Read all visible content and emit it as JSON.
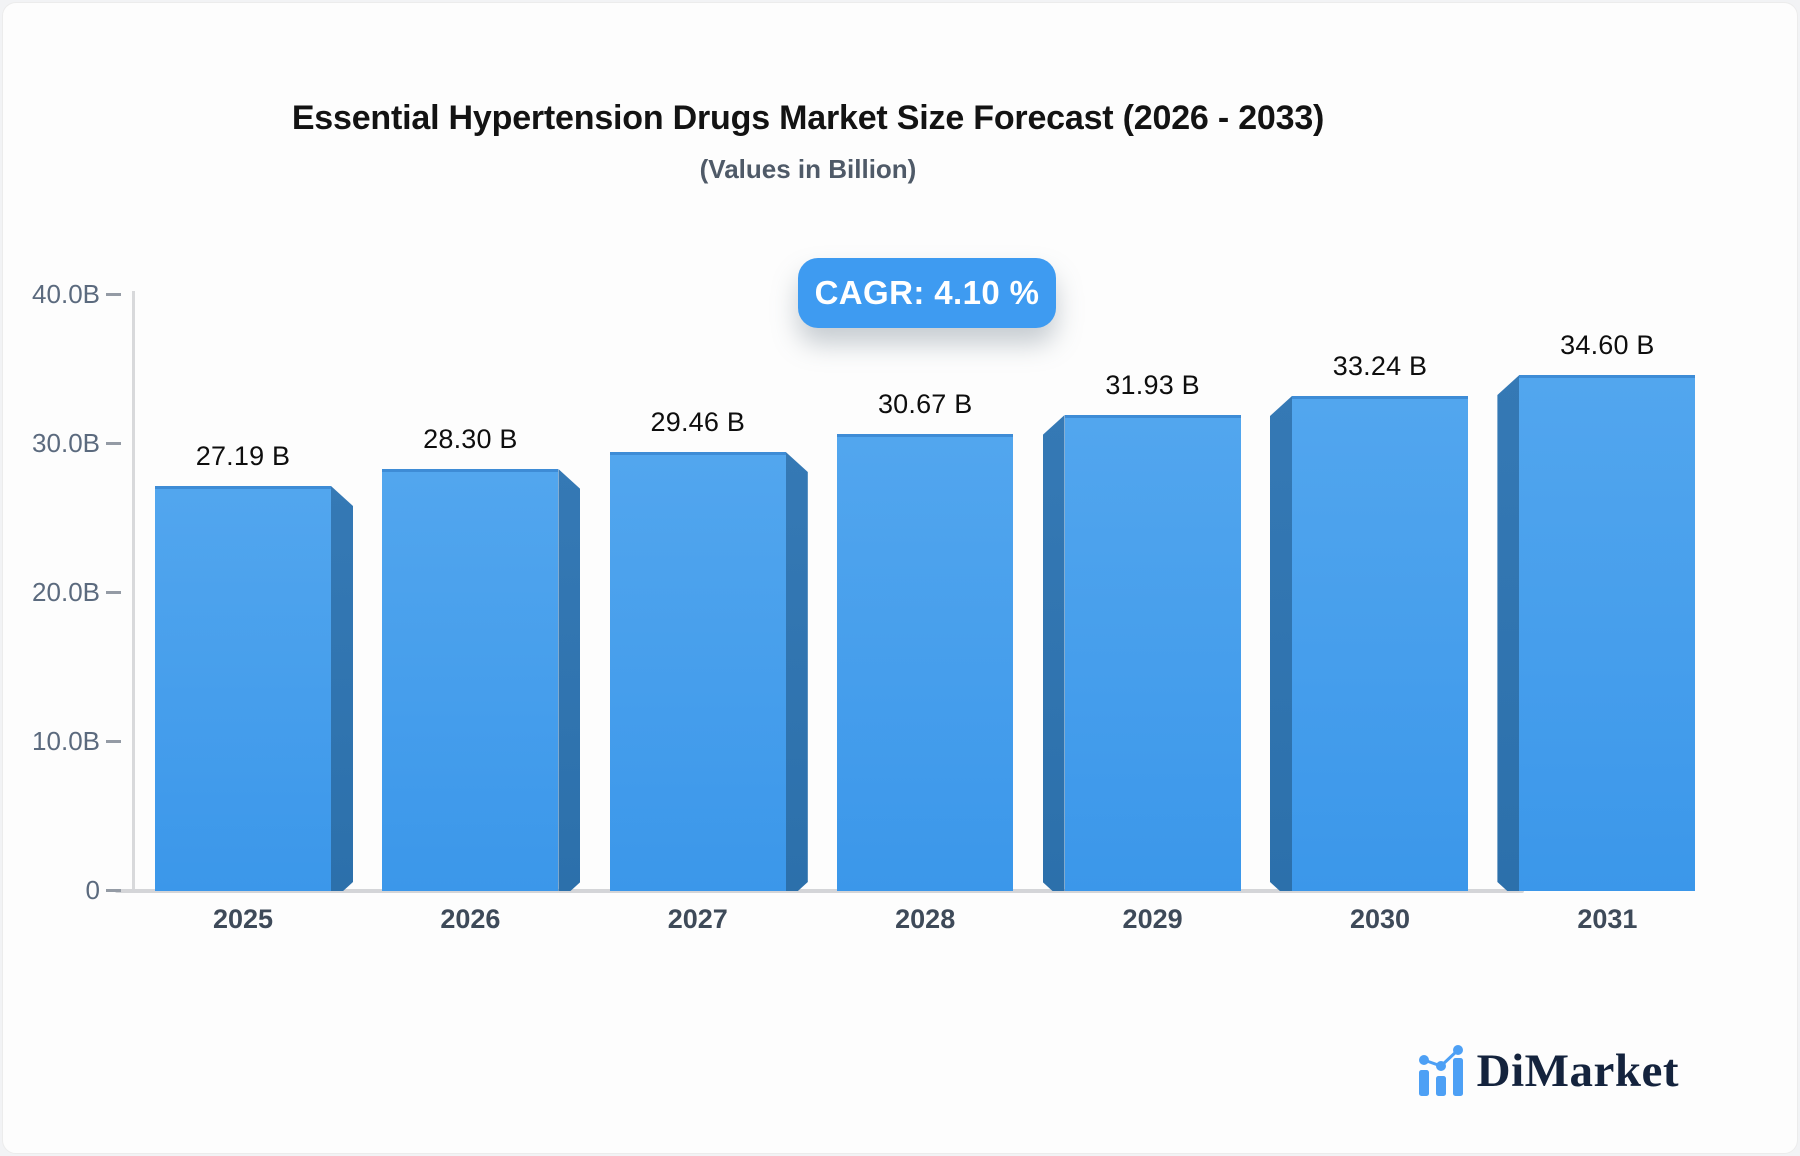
{
  "header": {
    "title": "Essential Hypertension Drugs Market Size Forecast (2026 - 2033)",
    "subtitle": "(Values in Billion)",
    "cagr_badge": "CAGR: 4.10 %"
  },
  "chart_data": {
    "type": "bar",
    "title": "Essential Hypertension Drugs Market Size Forecast (2026 - 2033)",
    "subtitle": "(Values in Billion)",
    "categories": [
      "2025",
      "2026",
      "2027",
      "2028",
      "2029",
      "2030",
      "2031"
    ],
    "values": [
      27.19,
      28.3,
      29.46,
      30.67,
      31.93,
      33.24,
      34.6
    ],
    "value_labels": [
      "27.19 B",
      "28.30 B",
      "29.46 B",
      "30.67 B",
      "31.93 B",
      "33.24 B",
      "34.60 B"
    ],
    "unit": "Billion",
    "cagr": "4.10 %",
    "ylim": [
      0,
      40
    ],
    "ytick_values": [
      0,
      10,
      20,
      30,
      40
    ],
    "ytick_labels": [
      "0",
      "10.0B",
      "20.0B",
      "30.0B",
      "40.0B"
    ],
    "xlabel": "",
    "ylabel": "",
    "grid": false,
    "legend": false,
    "bar_style": "3d-beveled"
  },
  "colors": {
    "bar_top": "#52a6ee",
    "bar_bottom": "#3b97ea",
    "bar_edge": "#3e8cd6",
    "bar_side_top": "#3579b5",
    "bar_side_bottom": "#2c70ab",
    "badge": "#3e9bf1",
    "brand_blue": "#4da0f5",
    "brand_navy": "#14233d"
  },
  "footer": {
    "brand": "DiMarket"
  }
}
